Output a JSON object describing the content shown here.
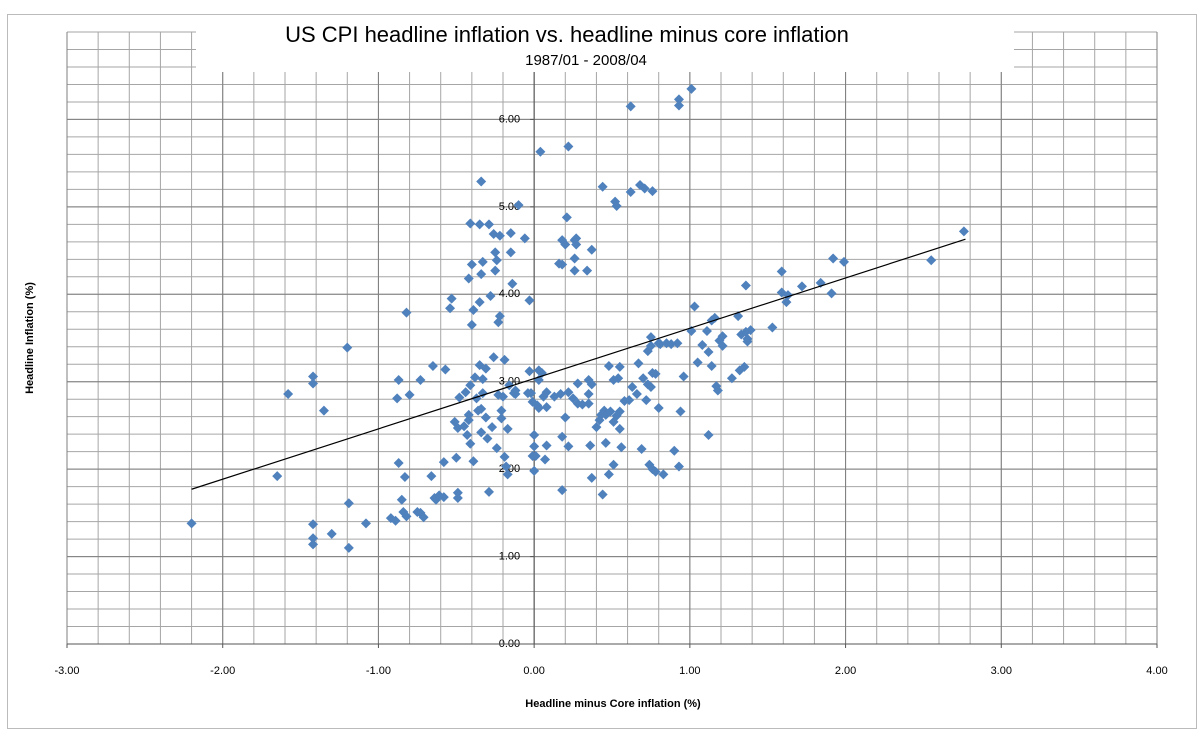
{
  "chart_data": {
    "type": "scatter",
    "title": "US CPI headline  inflation vs. headline  minus core inflation",
    "subtitle": "1987/01 - 2008/04",
    "x_label": "Headline minus Core inflation (%)",
    "y_label": "Headline Inflation (%)",
    "xlim": [
      -3,
      4
    ],
    "ylim": [
      0,
      7
    ],
    "xticks": [
      {
        "value": -3,
        "label": "-3.00"
      },
      {
        "value": -2,
        "label": "-2.00"
      },
      {
        "value": -1,
        "label": "-1.00"
      },
      {
        "value": 0,
        "label": "0.00"
      },
      {
        "value": 1,
        "label": "1.00"
      },
      {
        "value": 2,
        "label": "2.00"
      },
      {
        "value": 3,
        "label": "3.00"
      },
      {
        "value": 4,
        "label": "4.00"
      }
    ],
    "yticks": [
      {
        "value": 0,
        "label": "0.00"
      },
      {
        "value": 1,
        "label": "1.00"
      },
      {
        "value": 2,
        "label": "2.00"
      },
      {
        "value": 3,
        "label": "3.00"
      },
      {
        "value": 4,
        "label": "4.00"
      },
      {
        "value": 5,
        "label": "5.00"
      },
      {
        "value": 6,
        "label": "6.00"
      }
    ],
    "grid": true,
    "series": [
      {
        "color": "#4f81bd",
        "x": [
          -2.2,
          -1.65,
          -1.58,
          -1.42,
          -1.42,
          -1.35,
          -1.42,
          -1.42,
          -1.42,
          -1.3,
          -1.19,
          -1.19,
          -1.2,
          -1.08,
          -0.92,
          -0.89,
          -0.87,
          -0.83,
          -0.85,
          -0.84,
          -0.82,
          -0.8,
          -0.82,
          -0.87,
          -0.88,
          -0.75,
          -0.73,
          -0.71,
          -0.73,
          -0.65,
          -0.66,
          -0.63,
          -0.61,
          -0.58,
          -0.57,
          -0.58,
          -0.64,
          -0.54,
          -0.53,
          -0.5,
          -0.51,
          -0.49,
          -0.49,
          -0.49,
          -0.48,
          -0.45,
          -0.44,
          -0.43,
          -0.41,
          -0.41,
          -0.42,
          -0.42,
          -0.41,
          -0.4,
          -0.4,
          -0.39,
          -0.42,
          -0.39,
          -0.38,
          -0.37,
          -0.36,
          -0.35,
          -0.35,
          -0.34,
          -0.34,
          -0.33,
          -0.33,
          -0.31,
          -0.34,
          -0.33,
          -0.35,
          -0.34,
          -0.31,
          -0.3,
          -0.29,
          -0.29,
          -0.28,
          -0.27,
          -0.26,
          -0.26,
          -0.25,
          -0.25,
          -0.24,
          -0.24,
          -0.23,
          -0.23,
          -0.22,
          -0.22,
          -0.21,
          -0.21,
          -0.2,
          -0.19,
          -0.19,
          -0.18,
          -0.17,
          -0.17,
          -0.16,
          -0.15,
          -0.15,
          -0.14,
          -0.13,
          -0.12,
          -0.12,
          -0.1,
          -0.06,
          -0.04,
          -0.03,
          -0.03,
          -0.02,
          -0.01,
          0,
          0,
          -0.01,
          0,
          0.01,
          0.02,
          0.03,
          0.03,
          0.03,
          0.04,
          0.05,
          0.06,
          0.07,
          0.08,
          0.08,
          0.08,
          0.13,
          0.17,
          0.16,
          0.18,
          0.18,
          0.18,
          0.18,
          0.2,
          0.2,
          0.21,
          0.22,
          0.22,
          0.22,
          0.25,
          0.26,
          0.26,
          0.26,
          0.27,
          0.27,
          0.28,
          0.28,
          0.31,
          0.35,
          0.35,
          0.34,
          0.35,
          0.36,
          0.37,
          0.37,
          0.37,
          0.4,
          0.42,
          0.43,
          0.44,
          0.44,
          0.45,
          0.46,
          0.46,
          0.48,
          0.48,
          0.49,
          0.51,
          0.51,
          0.51,
          0.52,
          0.53,
          0.53,
          0.54,
          0.55,
          0.55,
          0.55,
          0.56,
          0.58,
          0.61,
          0.62,
          0.63,
          0.62,
          0.66,
          0.67,
          0.68,
          0.69,
          0.7,
          0.71,
          0.72,
          0.73,
          0.73,
          0.74,
          0.75,
          0.75,
          0.75,
          0.76,
          0.76,
          0.76,
          0.78,
          0.8,
          0.78,
          0.8,
          0.81,
          0.83,
          0.85,
          0.88,
          0.92,
          0.9,
          0.93,
          0.93,
          0.94,
          0.93,
          0.96,
          1.01,
          1.01,
          1.03,
          1.05,
          1.08,
          1.11,
          1.12,
          1.12,
          1.14,
          1.14,
          1.16,
          1.17,
          1.18,
          1.19,
          1.21,
          1.21,
          1.27,
          1.31,
          1.32,
          1.33,
          1.35,
          1.36,
          1.37,
          1.36,
          1.37,
          1.39,
          1.53,
          1.59,
          1.59,
          1.62,
          1.63,
          1.72,
          1.84,
          1.91,
          1.92,
          1.99,
          2.55,
          2.76
        ],
        "values": [
          1.38,
          1.92,
          2.86,
          3.06,
          2.98,
          2.67,
          1.37,
          1.21,
          1.14,
          1.26,
          1.1,
          1.61,
          3.39,
          1.38,
          1.44,
          1.41,
          2.07,
          1.91,
          1.65,
          1.51,
          1.46,
          2.85,
          3.79,
          3.02,
          2.81,
          1.51,
          1.5,
          1.45,
          3.02,
          3.18,
          1.92,
          1.65,
          1.7,
          1.68,
          3.14,
          2.08,
          1.67,
          3.84,
          3.95,
          2.13,
          2.54,
          1.73,
          1.67,
          2.47,
          2.82,
          2.49,
          2.88,
          2.39,
          2.96,
          4.81,
          4.18,
          2.56,
          2.29,
          4.34,
          3.65,
          3.82,
          2.62,
          2.09,
          3.05,
          2.81,
          2.67,
          3.19,
          3.91,
          2.42,
          2.69,
          3.03,
          2.87,
          3.15,
          4.23,
          4.37,
          4.8,
          5.29,
          2.59,
          2.35,
          1.74,
          4.8,
          3.98,
          2.48,
          3.28,
          4.69,
          4.48,
          4.27,
          4.39,
          2.24,
          2.85,
          3.68,
          3.75,
          4.67,
          2.58,
          2.67,
          2.83,
          3.25,
          2.14,
          2.03,
          1.94,
          2.46,
          2.96,
          4.48,
          4.7,
          4.12,
          2.87,
          2.86,
          2.9,
          5.02,
          4.64,
          2.87,
          3.93,
          3.12,
          2.87,
          2.77,
          2.39,
          2.26,
          2.15,
          1.98,
          2.15,
          2.73,
          3.02,
          3.13,
          2.7,
          5.63,
          3.1,
          2.83,
          2.11,
          2.27,
          2.88,
          2.71,
          2.83,
          2.86,
          4.35,
          1.76,
          4.34,
          4.62,
          2.37,
          4.57,
          2.59,
          4.88,
          2.88,
          5.69,
          2.26,
          2.81,
          4.62,
          4.27,
          4.41,
          4.57,
          4.64,
          2.75,
          2.98,
          2.74,
          2.75,
          2.86,
          4.27,
          3.02,
          2.27,
          2.97,
          4.51,
          1.9,
          2.48,
          2.56,
          2.62,
          5.23,
          1.71,
          2.67,
          2.3,
          2.62,
          1.94,
          3.18,
          2.66,
          3.02,
          2.05,
          2.54,
          5.06,
          5.01,
          2.61,
          3.04,
          3.17,
          2.46,
          2.66,
          2.25,
          2.78,
          2.79,
          5.17,
          2.94,
          6.15,
          2.86,
          3.21,
          5.25,
          2.23,
          3.04,
          5.21,
          2.79,
          2.97,
          3.35,
          2.05,
          3.41,
          3.51,
          2.94,
          5.18,
          2.0,
          3.1,
          1.97,
          2.7,
          3.09,
          3.44,
          3.43,
          1.94,
          3.44,
          3.43,
          3.44,
          2.21,
          2.03,
          6.23,
          2.66,
          6.16,
          3.06,
          6.35,
          3.58,
          3.86,
          3.22,
          3.42,
          3.58,
          2.39,
          3.34,
          3.7,
          3.18,
          3.73,
          2.95,
          2.9,
          3.47,
          3.41,
          3.52,
          3.04,
          3.75,
          3.13,
          3.54,
          3.17,
          3.57,
          3.49,
          4.1,
          3.46,
          3.59,
          3.62,
          4.26,
          4.02,
          3.91,
          3.99,
          4.09,
          4.13,
          4.01,
          4.41,
          4.37,
          4.39,
          4.72
        ]
      }
    ],
    "trendline": {
      "color": "#000000",
      "x": [
        -2.2,
        2.77
      ],
      "values": [
        1.77,
        4.63
      ]
    }
  }
}
